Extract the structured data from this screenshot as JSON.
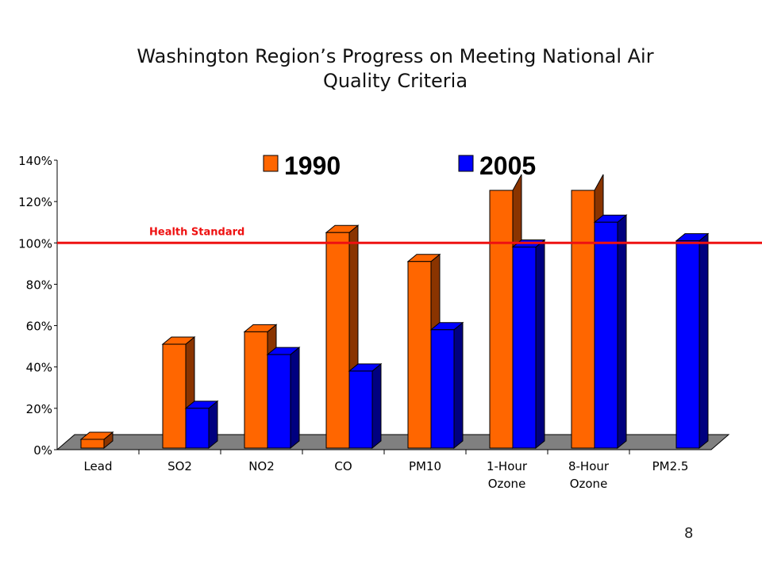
{
  "slide": {
    "title_line1": "Washington Region’s Progress on Meeting National Air",
    "title_line2": "Quality Criteria",
    "page_number": "8"
  },
  "chart_data": {
    "type": "bar",
    "categories": [
      [
        "Lead"
      ],
      [
        "SO2"
      ],
      [
        "NO2"
      ],
      [
        "CO"
      ],
      [
        "PM10"
      ],
      [
        "1-Hour",
        "Ozone"
      ],
      [
        "8-Hour",
        "Ozone"
      ],
      [
        "PM2.5"
      ]
    ],
    "series": [
      {
        "name": "1990",
        "values": [
          5,
          51,
          57,
          105,
          91,
          126,
          126,
          null
        ],
        "color": "#ff6600",
        "side_color": "#8a3400"
      },
      {
        "name": "2005",
        "values": [
          null,
          20,
          46,
          38,
          58,
          98,
          110,
          101
        ],
        "color": "#0000ff",
        "side_color": "#00007f"
      }
    ],
    "ylim": [
      0,
      140
    ],
    "yticks": [
      0,
      20,
      40,
      60,
      80,
      100,
      120,
      140
    ],
    "ytick_labels": [
      "0%",
      "20%",
      "40%",
      "60%",
      "80%",
      "100%",
      "120%",
      "140%"
    ],
    "reference_line": {
      "value": 100,
      "label": "Health Standard",
      "color": "#ee1111"
    },
    "floor_color": "#808080",
    "legend_position": "top",
    "grid": false
  }
}
